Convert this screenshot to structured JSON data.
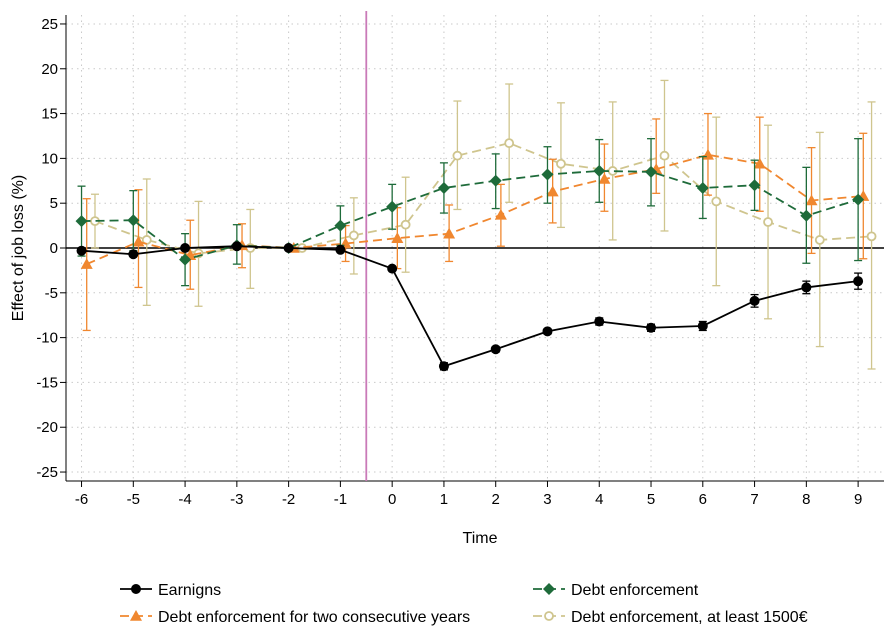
{
  "chart_data": {
    "type": "line",
    "xlabel": "Time",
    "ylabel": "Effect of job loss (%)",
    "x": [
      -6,
      -5,
      -4,
      -3,
      -2,
      -1,
      0,
      1,
      2,
      3,
      4,
      5,
      6,
      7,
      8,
      9
    ],
    "xlim": [
      -6.3,
      9.5
    ],
    "ylim": [
      -26,
      26
    ],
    "yticks": [
      25,
      20,
      15,
      10,
      5,
      0,
      -5,
      -10,
      -15,
      -20,
      -25
    ],
    "xticks": [
      -6,
      -5,
      -4,
      -3,
      -2,
      -1,
      0,
      1,
      2,
      3,
      4,
      5,
      6,
      7,
      8,
      9
    ],
    "event_line_x": -0.5,
    "grid": true,
    "legend_position": "bottom",
    "series": [
      {
        "name": "Earnigns",
        "color": "#000000",
        "marker": "circle",
        "line": "solid",
        "offset": 0,
        "values": [
          -0.3,
          -0.7,
          0.0,
          0.2,
          0.0,
          -0.2,
          -2.3,
          -13.2,
          -11.3,
          -9.3,
          -8.2,
          -8.9,
          -8.7,
          -5.9,
          -4.4,
          -3.7
        ],
        "ci_low": [
          -0.5,
          -0.9,
          -0.2,
          0.0,
          0.0,
          -0.4,
          -2.5,
          -13.6,
          -11.6,
          -9.6,
          -8.6,
          -9.3,
          -9.2,
          -6.6,
          -5.1,
          -4.6
        ],
        "ci_high": [
          -0.1,
          -0.5,
          0.2,
          0.4,
          0.0,
          0.0,
          -2.1,
          -12.8,
          -11.0,
          -9.0,
          -7.8,
          -8.5,
          -8.2,
          -5.2,
          -3.7,
          -2.8
        ]
      },
      {
        "name": "Debt enforcement for two consecutive years",
        "color": "#f0872f",
        "marker": "triangle",
        "line": "dashed",
        "offset": 0.1,
        "values": [
          -1.8,
          0.7,
          -0.8,
          0.3,
          0.0,
          0.5,
          1.1,
          1.6,
          3.7,
          6.3,
          7.7,
          8.8,
          10.4,
          9.4,
          5.3,
          5.8
        ],
        "ci_low": [
          -9.2,
          -4.4,
          -4.6,
          -2.2,
          0.0,
          -1.5,
          -2.3,
          -1.5,
          0.2,
          2.8,
          4.1,
          6.1,
          5.9,
          4.1,
          -0.6,
          -1.2
        ],
        "ci_high": [
          5.5,
          6.5,
          3.1,
          2.7,
          0.0,
          2.5,
          4.5,
          4.8,
          7.1,
          9.9,
          11.6,
          14.4,
          15.0,
          14.6,
          11.2,
          12.8
        ]
      },
      {
        "name": "Debt enforcement",
        "color": "#1e6b3a",
        "marker": "diamond",
        "line": "dashed",
        "offset": 0,
        "values": [
          3.0,
          3.1,
          -1.3,
          0.3,
          0.0,
          2.5,
          4.6,
          6.7,
          7.5,
          8.2,
          8.6,
          8.5,
          6.7,
          7.0,
          3.6,
          5.4
        ],
        "ci_low": [
          -0.9,
          -0.3,
          -4.2,
          -1.8,
          0.0,
          0.3,
          2.1,
          3.9,
          4.4,
          5.0,
          5.1,
          4.7,
          3.3,
          4.2,
          -1.7,
          -1.4
        ],
        "ci_high": [
          6.9,
          6.4,
          1.6,
          2.6,
          0.0,
          4.7,
          7.1,
          9.5,
          10.5,
          11.3,
          12.1,
          12.2,
          10.2,
          9.8,
          9.0,
          12.2
        ]
      },
      {
        "name": "Debt enforcement, at least 1500€",
        "color": "#cfc58e",
        "marker": "hollow-circle",
        "line": "dashed",
        "offset": 0.26,
        "values": [
          3.0,
          0.9,
          -0.6,
          0.0,
          0.0,
          1.4,
          2.6,
          10.3,
          11.7,
          9.4,
          8.6,
          10.3,
          5.2,
          2.9,
          0.9,
          1.3
        ],
        "ci_low": [
          0.0,
          -6.4,
          -6.5,
          -4.5,
          0.0,
          -2.9,
          -2.7,
          4.3,
          5.1,
          2.3,
          0.9,
          1.9,
          -4.2,
          -7.9,
          -11.0,
          -13.5
        ],
        "ci_high": [
          6.0,
          7.7,
          5.2,
          4.3,
          0.0,
          5.6,
          7.9,
          16.4,
          18.3,
          16.2,
          16.3,
          18.7,
          14.6,
          13.7,
          12.9,
          16.3
        ]
      }
    ]
  }
}
